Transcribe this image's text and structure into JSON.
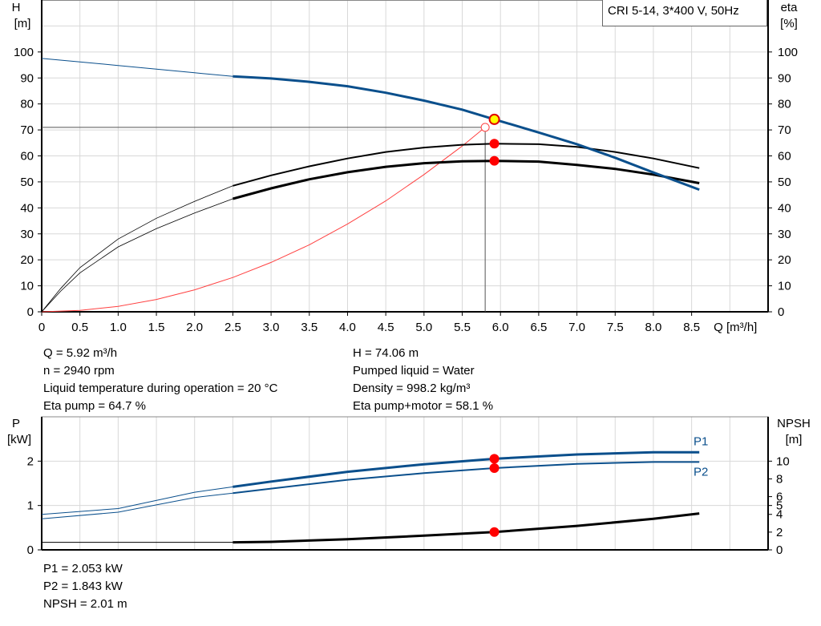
{
  "legend_title": "CRI 5-14, 3*400 V, 50Hz",
  "chart_data": [
    {
      "type": "line",
      "xlabel": "Q [m³/h]",
      "ylabel_left": "H",
      "ylabel_left_unit": "[m]",
      "ylabel_right": "eta",
      "ylabel_right_unit": "[%]",
      "xlim": [
        0,
        9.5
      ],
      "ylim": [
        0,
        120
      ],
      "grid": true,
      "xticks": [
        "0",
        "0.5",
        "1.0",
        "1.5",
        "2.0",
        "2.5",
        "3.0",
        "3.5",
        "4.0",
        "4.5",
        "5.0",
        "5.5",
        "6.0",
        "6.5",
        "7.0",
        "7.5",
        "8.0",
        "8.5"
      ],
      "yticks": [
        "0",
        "10",
        "20",
        "30",
        "40",
        "50",
        "60",
        "70",
        "80",
        "90",
        "100"
      ],
      "thin_range_end": 2.5,
      "series": [
        {
          "key": "H",
          "color": "#0a4f8c",
          "x": [
            0,
            0.5,
            1,
            1.5,
            2,
            2.5,
            3,
            3.5,
            4,
            4.5,
            5,
            5.5,
            5.92,
            6.5,
            7,
            7.5,
            8,
            8.6
          ],
          "y": [
            97.5,
            96.2,
            94.8,
            93.4,
            92,
            90.6,
            89.8,
            88.5,
            86.8,
            84.3,
            81.3,
            77.8,
            74.06,
            69,
            64.5,
            59.3,
            53.6,
            47
          ]
        },
        {
          "key": "eta_pump",
          "color": "#000000",
          "x": [
            0,
            0.25,
            0.5,
            1,
            1.5,
            2,
            2.5,
            3,
            3.5,
            4,
            4.5,
            5,
            5.5,
            5.92,
            6.5,
            7,
            7.5,
            8,
            8.6
          ],
          "y": [
            0,
            9,
            17,
            28,
            36,
            42.5,
            48.5,
            52.5,
            56,
            59,
            61.5,
            63.2,
            64.3,
            64.7,
            64.5,
            63.5,
            61.5,
            59,
            55.3
          ]
        },
        {
          "key": "eta_pump_motor",
          "color": "#000000",
          "x": [
            0,
            0.25,
            0.5,
            1,
            1.5,
            2,
            2.5,
            3,
            3.5,
            4,
            4.5,
            5,
            5.5,
            5.92,
            6.5,
            7,
            7.5,
            8,
            8.6
          ],
          "y": [
            0,
            8,
            15,
            25,
            32,
            38,
            43.5,
            47.5,
            51,
            53.7,
            55.8,
            57.2,
            57.9,
            58.1,
            57.8,
            56.5,
            55,
            52.8,
            49.5
          ]
        },
        {
          "key": "system",
          "color": "#ff4040",
          "x": [
            0,
            0.5,
            1,
            1.5,
            2,
            2.5,
            3,
            3.5,
            4,
            4.5,
            5,
            5.5,
            5.8
          ],
          "y": [
            0,
            0.53,
            2.11,
            4.75,
            8.44,
            13.2,
            19,
            25.8,
            33.8,
            42.7,
            52.8,
            63.8,
            71
          ]
        }
      ],
      "duty_point": {
        "Q": 5.92,
        "H": 74.06,
        "eta_pump": 64.7,
        "eta_pump_motor": 58.1
      },
      "system_point": {
        "Q": 5.8,
        "H": 71
      }
    },
    {
      "type": "line",
      "ylabel_left": "P",
      "ylabel_left_unit": "[kW]",
      "ylabel_right": "NPSH",
      "ylabel_right_unit": "[m]",
      "xlim": [
        0,
        9.5
      ],
      "ylim": [
        0,
        3
      ],
      "ylim_right": [
        0,
        15
      ],
      "grid": true,
      "yticks": [
        "0",
        "1",
        "2"
      ],
      "yticks_right": [
        "0",
        "2",
        "4",
        "5",
        "6",
        "8",
        "10"
      ],
      "series": [
        {
          "name": "P1",
          "color": "#0a4f8c",
          "axis": "left",
          "x": [
            0,
            1,
            2,
            2.5,
            3,
            4,
            5,
            5.92,
            7,
            8,
            8.6
          ],
          "y": [
            0.8,
            0.93,
            1.3,
            1.42,
            1.54,
            1.76,
            1.93,
            2.053,
            2.15,
            2.2,
            2.2
          ]
        },
        {
          "name": "P2",
          "color": "#0a4f8c",
          "axis": "left",
          "x": [
            0,
            1,
            2,
            2.5,
            3,
            4,
            5,
            5.92,
            7,
            8,
            8.6
          ],
          "y": [
            0.7,
            0.85,
            1.18,
            1.28,
            1.38,
            1.58,
            1.73,
            1.843,
            1.94,
            1.98,
            1.98
          ]
        },
        {
          "key": "NPSH",
          "color": "#000000",
          "axis": "right",
          "x": [
            0,
            1,
            2,
            2.5,
            3,
            4,
            5,
            5.92,
            7,
            8,
            8.6
          ],
          "y": [
            0.85,
            0.85,
            0.85,
            0.85,
            0.9,
            1.2,
            1.6,
            2.01,
            2.7,
            3.5,
            4.1
          ]
        }
      ],
      "duty_point": {
        "Q": 5.92,
        "P1": 2.053,
        "P2": 1.843,
        "NPSH": 2.01
      }
    }
  ],
  "info_top_left": [
    "Q = 5.92 m³/h",
    "n = 2940 rpm",
    "Liquid temperature during operation = 20 °C",
    "Eta pump = 64.7 %"
  ],
  "info_top_right": [
    "H = 74.06 m",
    "Pumped liquid = Water",
    "Density = 998.2 kg/m³",
    "Eta pump+motor = 58.1 %"
  ],
  "info_bottom": [
    "P1 = 2.053 kW",
    "P2 = 1.843 kW",
    "NPSH = 2.01 m"
  ]
}
